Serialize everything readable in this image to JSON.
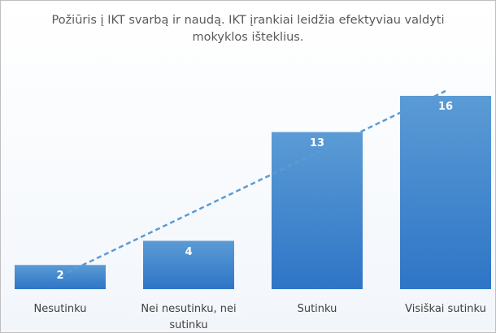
{
  "chart_data": {
    "type": "bar",
    "title": "Požiūris į IKT svarbą ir naudą. IKT įrankiai leidžia efektyviau valdyti mokyklos išteklius.",
    "categories": [
      "Nesutinku",
      "Nei nesutinku, nei sutinku",
      "Sutinku",
      "Visiškai sutinku"
    ],
    "values": [
      2,
      4,
      13,
      16
    ],
    "color": "#4a8fd6",
    "trendline": "linear"
  }
}
